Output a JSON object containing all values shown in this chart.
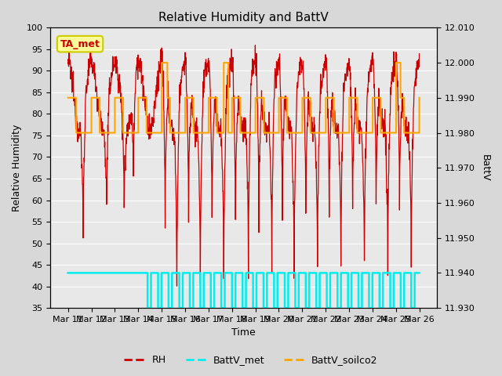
{
  "title": "Relative Humidity and BattV",
  "xlabel": "Time",
  "ylabel_left": "Relative Humidity",
  "ylabel_right": "BattV",
  "ylim_left": [
    35,
    100
  ],
  "ylim_right": [
    11.93,
    12.01
  ],
  "yticks_left": [
    35,
    40,
    45,
    50,
    55,
    60,
    65,
    70,
    75,
    80,
    85,
    90,
    95,
    100
  ],
  "yticks_right": [
    11.93,
    11.94,
    11.95,
    11.96,
    11.97,
    11.98,
    11.99,
    12.0,
    12.01
  ],
  "xtick_labels": [
    "Mar 11",
    "Mar 12",
    "Mar 13",
    "Mar 14",
    "Mar 15",
    "Mar 16",
    "Mar 17",
    "Mar 18",
    "Mar 19",
    "Mar 20",
    "Mar 21",
    "Mar 22",
    "Mar 23",
    "Mar 24",
    "Mar 25",
    "Mar 26"
  ],
  "bg_color": "#d8d8d8",
  "plot_bg_color": "#e8e8e8",
  "grid_color": "#ffffff",
  "rh_color": "#cc0000",
  "battv_met_color": "#00eeee",
  "battv_soilco2_color": "#ffa500",
  "annotation_text": "TA_met",
  "annotation_bg": "#ffff99",
  "annotation_border": "#cccc00"
}
